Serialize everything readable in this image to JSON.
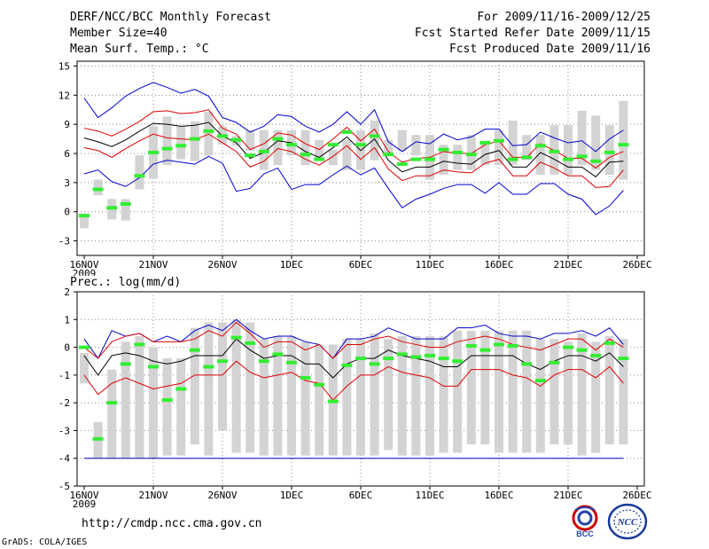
{
  "header": {
    "title": "DERF/NCC/BCC Monthly Forecast",
    "member_size": "Member Size=40",
    "variable": "Mean Surf. Temp.: °C",
    "period": "For 2009/11/16-2009/12/25",
    "fcst_started": "Fcst Started Refer Date 2009/11/15",
    "fcst_produced": "Fcst Produced Date 2009/11/16"
  },
  "footer": {
    "url": "http://cmdp.ncc.cma.gov.cn",
    "grads_credit": "GrADS: COLA/IGES",
    "logo_bcc": "BCC",
    "logo_ncc": "NCC"
  },
  "colors": {
    "box": "#d3d3d3",
    "median": "#33ee33",
    "mean": "#000000",
    "std": "#dd0000",
    "extreme": "#0000cc",
    "grid": "#888888"
  },
  "chart_data": [
    {
      "type": "box",
      "title": "Mean Surf. Temp.: °C",
      "ylim": [
        -4.5,
        15.5
      ],
      "yticks": [
        -3,
        0,
        3,
        6,
        9,
        12,
        15
      ],
      "xticks": [
        "16NOV",
        "21NOV",
        "26NOV",
        "1DEC",
        "6DEC",
        "11DEC",
        "16DEC",
        "21DEC",
        "26DEC"
      ],
      "xtick_year": "2009",
      "days": 40,
      "box_low": [
        -1.7,
        1.7,
        -0.8,
        -0.9,
        2.3,
        3.4,
        4.8,
        5.4,
        5.2,
        5.8,
        6.9,
        6.8,
        6.3,
        4.3,
        4.8,
        5.8,
        4.8,
        5.3,
        4.8,
        4.3,
        4.3,
        5.3,
        5.8,
        6.3,
        5.8,
        3.3,
        3.8,
        4.3,
        4.3,
        4.8,
        4.8,
        4.8,
        5.3,
        3.8,
        3.8,
        3.8,
        4.8,
        4.3,
        3.8,
        3.3
      ],
      "box_high": [
        -0.2,
        3.3,
        1.3,
        1.3,
        5.8,
        8.8,
        9.8,
        8.8,
        9.3,
        10.3,
        8.8,
        7.8,
        8.4,
        8.4,
        8.4,
        8.4,
        8.4,
        7.4,
        6.4,
        7.4,
        8.4,
        9.4,
        7.4,
        8.4,
        7.9,
        7.9,
        6.9,
        6.9,
        7.9,
        6.9,
        8.4,
        9.4,
        7.9,
        7.9,
        8.9,
        8.9,
        10.4,
        9.9,
        8.9,
        11.4
      ],
      "median": [
        -0.4,
        2.3,
        0.4,
        0.8,
        3.7,
        6.1,
        6.5,
        6.8,
        7.5,
        8.3,
        7.8,
        7.4,
        5.8,
        6.2,
        7.5,
        6.9,
        5.9,
        5.4,
        6.9,
        8.2,
        6.9,
        7.8,
        5.9,
        4.9,
        5.4,
        5.4,
        6.4,
        6.1,
        5.9,
        7.1,
        7.3,
        5.4,
        5.6,
        6.8,
        6.2,
        5.4,
        5.7,
        5.2,
        6.1,
        6.9
      ],
      "mean": [
        7.6,
        7.2,
        6.7,
        7.4,
        8.3,
        9.1,
        9.0,
        8.8,
        8.9,
        9.2,
        7.8,
        7.1,
        5.5,
        6.1,
        7.3,
        7.1,
        6.2,
        5.6,
        6.6,
        7.7,
        6.3,
        7.5,
        5.3,
        4.1,
        4.6,
        4.6,
        5.2,
        5.0,
        4.9,
        5.9,
        6.3,
        4.6,
        4.6,
        6.1,
        5.4,
        4.6,
        4.6,
        3.6,
        5.1,
        5.2
      ],
      "plus_std": [
        8.6,
        8.3,
        7.8,
        8.5,
        9.3,
        10.3,
        10.4,
        10.1,
        10.2,
        10.5,
        8.6,
        8.0,
        6.4,
        7.0,
        8.1,
        7.9,
        7.0,
        6.4,
        7.5,
        8.7,
        7.3,
        8.5,
        6.2,
        5.1,
        5.5,
        5.6,
        6.2,
        6.0,
        6.0,
        6.9,
        7.3,
        5.6,
        5.6,
        7.0,
        6.3,
        5.5,
        5.5,
        4.5,
        5.6,
        6.2
      ],
      "minus_std": [
        6.6,
        6.3,
        5.6,
        6.5,
        7.3,
        8.0,
        7.6,
        7.5,
        7.4,
        8.0,
        7.1,
        6.2,
        4.6,
        5.2,
        6.5,
        6.2,
        5.4,
        4.8,
        5.7,
        6.8,
        5.4,
        6.6,
        4.4,
        3.2,
        3.7,
        3.7,
        4.3,
        4.1,
        4.0,
        5.0,
        5.4,
        3.7,
        3.7,
        5.1,
        4.5,
        3.7,
        3.7,
        2.5,
        2.6,
        4.3
      ],
      "max": [
        11.7,
        9.7,
        10.7,
        11.9,
        12.7,
        13.3,
        12.8,
        12.2,
        12.6,
        11.9,
        9.7,
        9.2,
        8.2,
        8.8,
        10.0,
        9.8,
        8.8,
        8.2,
        9.0,
        10.3,
        9.0,
        10.5,
        7.2,
        6.2,
        7.2,
        7.0,
        8.0,
        7.4,
        7.7,
        8.5,
        8.5,
        6.8,
        6.9,
        8.2,
        7.6,
        7.1,
        7.3,
        6.2,
        7.5,
        8.4
      ],
      "min": [
        3.9,
        4.3,
        3.1,
        2.6,
        3.5,
        4.9,
        5.3,
        5.1,
        4.9,
        5.7,
        5.0,
        2.1,
        2.4,
        3.9,
        4.5,
        2.3,
        2.8,
        2.8,
        3.8,
        4.7,
        3.8,
        4.5,
        2.4,
        0.4,
        1.3,
        1.8,
        2.4,
        2.8,
        2.8,
        1.9,
        3.0,
        1.8,
        1.8,
        2.9,
        2.9,
        1.8,
        1.3,
        -0.3,
        0.6,
        2.2
      ],
      "median_overrides": {}
    },
    {
      "type": "box",
      "title": "Prec.: log(mm/d)",
      "ylim": [
        -5,
        2
      ],
      "yticks": [
        -5,
        -4,
        -3,
        -2,
        -1,
        0,
        1,
        2
      ],
      "xticks": [
        "16NOV",
        "21NOV",
        "26NOV",
        "1DEC",
        "6DEC",
        "11DEC",
        "16DEC",
        "21DEC",
        "26DEC"
      ],
      "xtick_year": "2009",
      "days": 40,
      "box_low": [
        -1.3,
        -4.0,
        -4.0,
        -4.0,
        -4.0,
        -4.0,
        -3.9,
        -3.9,
        -3.5,
        -3.9,
        -3.0,
        -3.8,
        -3.8,
        -3.9,
        -3.9,
        -3.9,
        -3.9,
        -3.9,
        -3.9,
        -3.9,
        -3.9,
        -3.9,
        -3.7,
        -3.9,
        -3.9,
        -3.9,
        -3.8,
        -3.8,
        -3.5,
        -3.5,
        -3.8,
        -3.8,
        -3.8,
        -3.8,
        -3.5,
        -3.5,
        -3.9,
        -3.8,
        -3.5,
        -3.5
      ],
      "box_high": [
        -0.2,
        -2.7,
        -0.8,
        0.2,
        0.4,
        0.0,
        -0.4,
        -0.4,
        0.7,
        0.9,
        0.9,
        1.0,
        0.9,
        0.3,
        0.4,
        0.4,
        0.2,
        0.1,
        0.1,
        0.3,
        0.3,
        0.5,
        0.3,
        0.4,
        0.4,
        0.4,
        0.4,
        0.6,
        0.6,
        0.6,
        0.6,
        0.6,
        0.6,
        0.3,
        0.3,
        0.2,
        0.5,
        0.2,
        0.4,
        0.3
      ],
      "median": [
        0.0,
        -3.3,
        -2.0,
        -0.6,
        0.1,
        -0.7,
        -1.9,
        -1.5,
        -0.1,
        -0.7,
        -0.5,
        0.35,
        0.15,
        -0.5,
        -0.25,
        -0.55,
        -1.1,
        -1.35,
        -1.95,
        -0.65,
        -0.4,
        -0.6,
        -0.4,
        -0.25,
        -0.35,
        -0.3,
        -0.4,
        -0.5,
        0.05,
        -0.1,
        0.1,
        0.05,
        -0.6,
        -1.2,
        -0.55,
        0.0,
        -0.1,
        -0.3,
        0.15,
        -0.4
      ],
      "mean": [
        -0.3,
        -1.0,
        -0.3,
        -0.2,
        -0.3,
        -0.5,
        -0.6,
        -0.5,
        -0.3,
        -0.3,
        -0.3,
        0.3,
        -0.1,
        -0.4,
        -0.3,
        -0.3,
        -0.6,
        -0.6,
        -1.1,
        -0.6,
        -0.4,
        -0.4,
        -0.1,
        -0.3,
        -0.4,
        -0.5,
        -0.7,
        -0.7,
        -0.3,
        -0.3,
        -0.3,
        -0.3,
        -0.6,
        -0.8,
        -0.5,
        -0.3,
        -0.3,
        -0.5,
        -0.2,
        -0.7
      ],
      "plus_std": [
        0.0,
        -0.4,
        0.2,
        0.4,
        0.5,
        0.2,
        0.2,
        0.2,
        0.3,
        0.6,
        0.4,
        0.9,
        0.5,
        0.0,
        0.2,
        0.2,
        -0.1,
        0.1,
        -0.4,
        0.1,
        0.1,
        0.3,
        0.4,
        0.2,
        0.1,
        0.0,
        0.0,
        0.2,
        0.3,
        0.4,
        0.3,
        0.1,
        0.0,
        -0.1,
        0.1,
        0.3,
        0.3,
        -0.1,
        0.3,
        0.0
      ],
      "minus_std": [
        -1.0,
        -1.7,
        -1.3,
        -1.1,
        -1.3,
        -1.5,
        -1.4,
        -1.3,
        -1.0,
        -1.0,
        -1.0,
        -0.5,
        -0.9,
        -1.1,
        -1.0,
        -0.9,
        -1.2,
        -1.3,
        -1.9,
        -1.4,
        -1.0,
        -1.0,
        -0.7,
        -0.9,
        -1.0,
        -1.1,
        -1.4,
        -1.4,
        -0.8,
        -0.8,
        -0.8,
        -1.0,
        -1.1,
        -1.4,
        -1.0,
        -0.8,
        -0.8,
        -1.1,
        -0.7,
        -1.3
      ],
      "max": [
        0.3,
        -0.4,
        0.6,
        0.4,
        0.5,
        0.2,
        0.4,
        0.2,
        0.6,
        0.8,
        0.6,
        1.0,
        0.6,
        0.3,
        0.4,
        0.4,
        0.2,
        0.1,
        -0.4,
        0.3,
        0.3,
        0.4,
        0.7,
        0.5,
        0.3,
        0.3,
        0.3,
        0.7,
        0.7,
        0.8,
        0.5,
        0.4,
        0.4,
        0.3,
        0.5,
        0.5,
        0.6,
        0.4,
        0.7,
        0.1
      ],
      "min": [
        -4.0,
        -4.0,
        -4.0,
        -4.0,
        -4.0,
        -4.0,
        -4.0,
        -4.0,
        -4.0,
        -4.0,
        -4.0,
        -4.0,
        -4.0,
        -4.0,
        -4.0,
        -4.0,
        -4.0,
        -4.0,
        -4.0,
        -4.0,
        -4.0,
        -4.0,
        -4.0,
        -4.0,
        -4.0,
        -4.0,
        -4.0,
        -4.0,
        -4.0,
        -4.0,
        -4.0,
        -4.0,
        -4.0,
        -4.0,
        -4.0,
        -4.0,
        -4.0,
        -4.0,
        -4.0,
        -4.0
      ]
    }
  ]
}
